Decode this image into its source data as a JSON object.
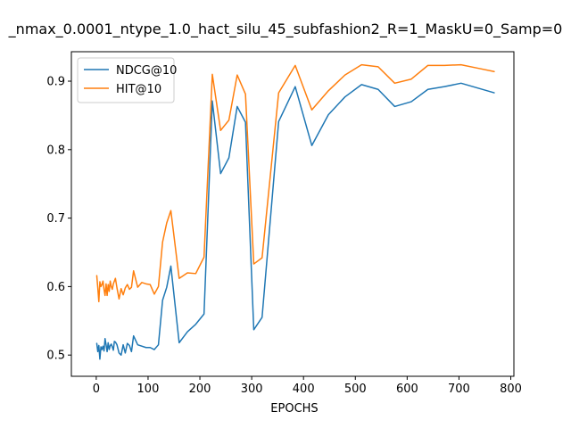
{
  "chart_data": {
    "type": "line",
    "title": "_nmax_0.0001_ntype_1.0_hact_silu_45_subfashion2_R=1_MaskU=0_Samp=0",
    "xlabel": "EPOCHS",
    "ylabel": "",
    "xlim": [
      -48,
      806
    ],
    "ylim": [
      0.469,
      0.943
    ],
    "xticks": [
      0,
      100,
      200,
      300,
      400,
      500,
      600,
      700,
      800
    ],
    "yticks": [
      0.5,
      0.6,
      0.7,
      0.8,
      0.9
    ],
    "grid": false,
    "legend_position": "upper left",
    "series": [
      {
        "name": "NDCG@10",
        "color": "#1f77b4",
        "x": [
          1,
          3,
          5,
          7,
          9,
          11,
          13,
          15,
          17,
          19,
          21,
          23,
          25,
          27,
          29,
          31,
          33,
          35,
          37,
          40,
          44,
          48,
          52,
          56,
          60,
          64,
          68,
          72,
          80,
          96,
          104,
          112,
          120,
          128,
          136,
          144,
          160,
          176,
          192,
          208,
          224,
          240,
          256,
          272,
          288,
          304,
          320,
          352,
          384,
          416,
          448,
          480,
          512,
          544,
          576,
          608,
          640,
          672,
          704,
          736,
          768
        ],
        "y": [
          0.517,
          0.505,
          0.514,
          0.494,
          0.512,
          0.508,
          0.513,
          0.506,
          0.524,
          0.515,
          0.505,
          0.518,
          0.508,
          0.514,
          0.516,
          0.512,
          0.507,
          0.52,
          0.519,
          0.515,
          0.503,
          0.5,
          0.515,
          0.503,
          0.517,
          0.514,
          0.505,
          0.528,
          0.515,
          0.511,
          0.511,
          0.508,
          0.515,
          0.58,
          0.599,
          0.63,
          0.518,
          0.534,
          0.545,
          0.56,
          0.871,
          0.765,
          0.788,
          0.863,
          0.84,
          0.537,
          0.555,
          0.841,
          0.892,
          0.806,
          0.851,
          0.877,
          0.895,
          0.888,
          0.863,
          0.87,
          0.888,
          0.892,
          0.897,
          0.89,
          0.883
        ]
      },
      {
        "name": "HIT@10",
        "color": "#ff7f0e",
        "x": [
          1,
          3,
          5,
          7,
          9,
          11,
          13,
          15,
          17,
          19,
          21,
          23,
          25,
          27,
          29,
          31,
          33,
          35,
          37,
          40,
          44,
          48,
          52,
          56,
          60,
          64,
          68,
          72,
          80,
          88,
          96,
          104,
          112,
          120,
          128,
          136,
          144,
          160,
          176,
          192,
          208,
          224,
          240,
          256,
          272,
          288,
          304,
          320,
          352,
          384,
          416,
          448,
          480,
          512,
          544,
          576,
          608,
          640,
          672,
          704,
          736,
          768
        ],
        "y": [
          0.616,
          0.598,
          0.578,
          0.607,
          0.6,
          0.603,
          0.608,
          0.596,
          0.587,
          0.604,
          0.587,
          0.603,
          0.593,
          0.608,
          0.6,
          0.596,
          0.604,
          0.608,
          0.612,
          0.598,
          0.582,
          0.597,
          0.588,
          0.598,
          0.603,
          0.596,
          0.599,
          0.623,
          0.599,
          0.606,
          0.604,
          0.603,
          0.589,
          0.6,
          0.665,
          0.693,
          0.711,
          0.612,
          0.62,
          0.619,
          0.643,
          0.91,
          0.828,
          0.843,
          0.909,
          0.881,
          0.633,
          0.642,
          0.883,
          0.923,
          0.858,
          0.886,
          0.909,
          0.924,
          0.921,
          0.897,
          0.903,
          0.923,
          0.923,
          0.924,
          0.919,
          0.914
        ]
      }
    ]
  }
}
